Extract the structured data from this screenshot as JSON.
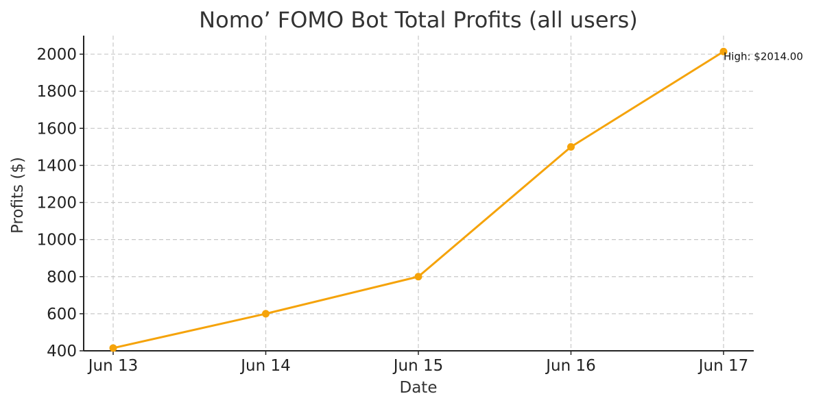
{
  "chart_data": {
    "type": "line",
    "title": "Nomo’ FOMO Bot Total Profits (all users)",
    "xlabel": "Date",
    "ylabel": "Profits ($)",
    "categories": [
      "Jun 13",
      "Jun 14",
      "Jun 15",
      "Jun 16",
      "Jun 17"
    ],
    "series": [
      {
        "values": [
          415,
          600,
          800,
          1500,
          2014
        ],
        "color": "#f5a30a"
      }
    ],
    "ylim": [
      400,
      2100
    ],
    "yticks": [
      400,
      600,
      800,
      1000,
      1200,
      1400,
      1600,
      1800,
      2000
    ],
    "grid": true,
    "annotation": {
      "text": "High: $2014.00",
      "category": "Jun 17",
      "value": 2014
    }
  }
}
